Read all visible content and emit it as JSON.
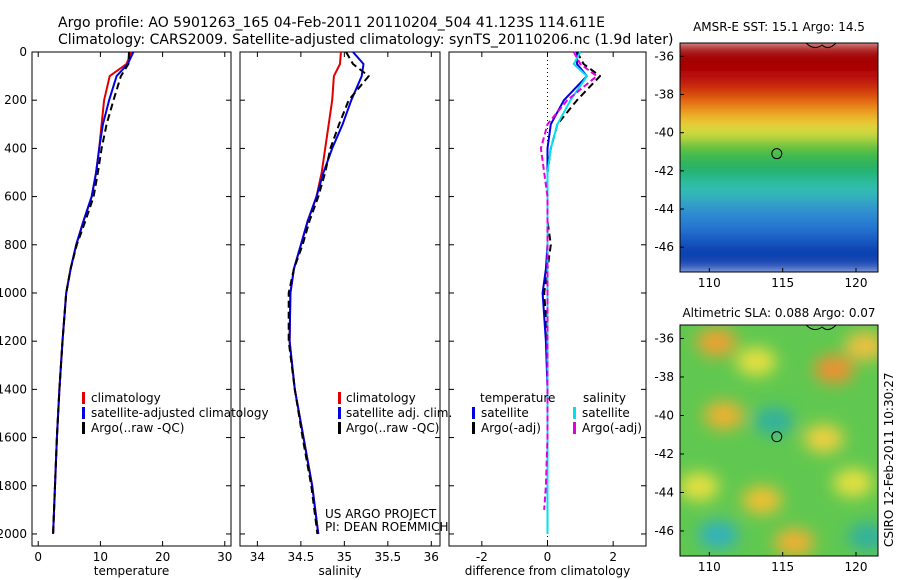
{
  "header": {
    "line1": "Argo profile: AO 5901263_165 04-Feb-2011 20110204_504 41.123S 114.611E",
    "line2": "Climatology: CARS2009. Satellite-adjusted climatology: synTS_20110206.nc (1.9d later)"
  },
  "colors": {
    "climatology": "#e00000",
    "satellite": "#0000e0",
    "argo": "#000000",
    "satellite_salinity": "#00e0f0",
    "argo_salinity_adj": "#e000e0"
  },
  "chart_data": [
    {
      "type": "line",
      "xlabel": "temperature",
      "ylabel": "",
      "xlim": [
        -1,
        31
      ],
      "ylim": [
        2050,
        0
      ],
      "xticks": [
        "0",
        "10",
        "20",
        "30"
      ],
      "yticks": [
        "0",
        "200",
        "400",
        "600",
        "800",
        "1000",
        "1200",
        "1400",
        "1600",
        "1800",
        "2000"
      ],
      "legend": [
        "climatology",
        "satellite-adjusted climatology",
        "Argo(..raw -QC)"
      ],
      "series": [
        {
          "name": "climatology",
          "color": "#e00000",
          "x": [
            15.0,
            14.2,
            11.5,
            10.6,
            10.2,
            9.8,
            9.3,
            8.6,
            7.3,
            6.1,
            5.2,
            4.5,
            3.9,
            3.4,
            3.0,
            2.7,
            2.4
          ],
          "y": [
            0,
            50,
            100,
            200,
            300,
            400,
            500,
            600,
            700,
            800,
            900,
            1000,
            1200,
            1400,
            1600,
            1800,
            2000
          ]
        },
        {
          "name": "satellite-adjusted climatology",
          "color": "#0000e0",
          "x": [
            15.3,
            14.4,
            12.6,
            11.4,
            10.4,
            9.8,
            9.3,
            8.6,
            7.3,
            6.1,
            5.2,
            4.5,
            3.9,
            3.4,
            3.0,
            2.7,
            2.4
          ],
          "y": [
            0,
            50,
            100,
            200,
            300,
            400,
            500,
            600,
            700,
            800,
            900,
            1000,
            1200,
            1400,
            1600,
            1800,
            2000
          ]
        },
        {
          "name": "Argo(..raw -QC)",
          "color": "#000000",
          "x": [
            14.6,
            14.5,
            13.3,
            12.1,
            11.0,
            10.2,
            9.6,
            8.9,
            7.6,
            6.2,
            5.2,
            4.5,
            3.9,
            3.4,
            3.0,
            2.7,
            2.4
          ],
          "y": [
            0,
            50,
            100,
            200,
            300,
            400,
            500,
            600,
            700,
            800,
            900,
            1000,
            1200,
            1400,
            1600,
            1800,
            2000
          ]
        }
      ]
    },
    {
      "type": "line",
      "xlabel": "salinity",
      "xlim": [
        33.8,
        36.1
      ],
      "ylim": [
        2050,
        0
      ],
      "xticks": [
        "34",
        "34.5",
        "35",
        "35.5",
        "36"
      ],
      "legend": [
        "climatology",
        "satellite adj. clim.",
        "Argo(..raw -QC)"
      ],
      "series": [
        {
          "name": "climatology",
          "color": "#e00000",
          "x": [
            34.96,
            34.95,
            34.88,
            34.86,
            34.82,
            34.78,
            34.74,
            34.68,
            34.58,
            34.5,
            34.42,
            34.38,
            34.37,
            34.43,
            34.53,
            34.63,
            34.7
          ],
          "y": [
            0,
            50,
            100,
            200,
            300,
            400,
            500,
            600,
            700,
            800,
            900,
            1000,
            1200,
            1400,
            1600,
            1800,
            2000
          ]
        },
        {
          "name": "satellite adj. clim.",
          "color": "#0000e0",
          "x": [
            35.1,
            35.22,
            35.2,
            35.08,
            34.98,
            34.86,
            34.76,
            34.68,
            34.58,
            34.5,
            34.42,
            34.38,
            34.37,
            34.43,
            34.53,
            34.63,
            34.7
          ],
          "y": [
            0,
            50,
            100,
            200,
            300,
            400,
            500,
            600,
            700,
            800,
            900,
            1000,
            1200,
            1400,
            1600,
            1800,
            2000
          ]
        },
        {
          "name": "Argo(..raw -QC)",
          "color": "#000000",
          "x": [
            35.02,
            35.1,
            35.28,
            35.05,
            34.94,
            34.84,
            34.78,
            34.7,
            34.6,
            34.52,
            34.42,
            34.36,
            34.36,
            34.43,
            34.52,
            34.62,
            34.69
          ],
          "y": [
            0,
            50,
            100,
            200,
            300,
            400,
            500,
            600,
            700,
            800,
            900,
            1000,
            1200,
            1400,
            1600,
            1800,
            2000
          ]
        }
      ],
      "annotations": [
        "US ARGO PROJECT",
        "PI: DEAN ROEMMICH"
      ]
    },
    {
      "type": "line",
      "xlabel": "difference from climatology",
      "xlim": [
        -3,
        3
      ],
      "ylim": [
        2050,
        0
      ],
      "xticks": [
        "-2",
        "0",
        "2"
      ],
      "legend_temperature_heading": "temperature",
      "legend_salinity_heading": "salinity",
      "legend_temperature": [
        "satellite",
        "Argo(-adj)"
      ],
      "legend_salinity": [
        "satellite",
        "Argo(-adj)"
      ],
      "series": [
        {
          "name": "temperature satellite",
          "color": "#0000e0",
          "x": [
            0.9,
            0.9,
            1.2,
            0.5,
            0.1,
            0.0,
            0.0,
            0.0,
            0.0,
            0.0,
            -0.05,
            -0.15,
            -0.05,
            0.0,
            0.0,
            0.0,
            0.0
          ],
          "y": [
            0,
            50,
            100,
            200,
            300,
            400,
            500,
            600,
            700,
            800,
            900,
            1000,
            1200,
            1400,
            1600,
            1800,
            2000
          ]
        },
        {
          "name": "temperature Argo(-adj)",
          "color": "#000000",
          "x": [
            0.9,
            1.1,
            1.6,
            0.9,
            0.3,
            0.1,
            0.0,
            0.0,
            0.0,
            0.1,
            0.0,
            -0.1,
            0.0,
            0.0,
            0.0,
            0.0,
            0.0
          ],
          "y": [
            0,
            50,
            100,
            200,
            300,
            400,
            500,
            600,
            700,
            800,
            900,
            1000,
            1200,
            1400,
            1600,
            1800,
            2000
          ]
        },
        {
          "name": "salinity satellite",
          "color": "#00e0f0",
          "x": [
            1.0,
            0.8,
            1.2,
            0.7,
            0.3,
            0.1,
            0.0,
            0.0,
            0.0,
            0.0,
            0.0,
            0.0,
            0.0,
            0.0,
            0.0,
            0.0,
            0.0
          ],
          "y": [
            0,
            50,
            100,
            200,
            300,
            400,
            500,
            600,
            700,
            800,
            900,
            1000,
            1200,
            1400,
            1600,
            1800,
            2000
          ]
        },
        {
          "name": "salinity Argo(-adj)",
          "color": "#e000e0",
          "x": [
            0.8,
            1.0,
            1.5,
            0.6,
            0.0,
            -0.2,
            -0.1,
            0.0,
            0.0,
            0.0,
            0.0,
            0.0,
            0.0,
            0.0,
            0.0,
            -0.05,
            -0.1
          ],
          "y": [
            0,
            50,
            100,
            200,
            300,
            400,
            500,
            600,
            700,
            800,
            900,
            1000,
            1200,
            1400,
            1600,
            1800,
            1900
          ]
        }
      ]
    },
    {
      "type": "heatmap",
      "title": "AMSR-E SST: 15.1 Argo: 14.5",
      "xlim": [
        108,
        121.5
      ],
      "ylim": [
        -47.3,
        -35.3
      ],
      "xticks": [
        "110",
        "115",
        "120"
      ],
      "yticks": [
        "-36",
        "-38",
        "-40",
        "-42",
        "-44",
        "-46"
      ],
      "bands": [
        {
          "lat": -35.3,
          "color": "#a00000"
        },
        {
          "lat": -36.8,
          "color": "#c01010"
        },
        {
          "lat": -37.8,
          "color": "#e05010"
        },
        {
          "lat": -38.6,
          "color": "#f0a020"
        },
        {
          "lat": -39.4,
          "color": "#e0e040"
        },
        {
          "lat": -40.3,
          "color": "#50c040"
        },
        {
          "lat": -41.3,
          "color": "#20b060"
        },
        {
          "lat": -42.4,
          "color": "#30c0b0"
        },
        {
          "lat": -43.5,
          "color": "#3090d0"
        },
        {
          "lat": -44.6,
          "color": "#2070d0"
        },
        {
          "lat": -45.6,
          "color": "#1040b0"
        },
        {
          "lat": -47.3,
          "color": "#102090"
        }
      ],
      "marker": {
        "lon": 114.6,
        "lat": -41.1
      }
    },
    {
      "type": "heatmap",
      "title": "Altimetric SLA: 0.088 Argo: 0.07",
      "xlim": [
        108,
        121.5
      ],
      "ylim": [
        -47.3,
        -35.3
      ],
      "xticks": [
        "110",
        "115",
        "120"
      ],
      "yticks": [
        "-36",
        "-38",
        "-40",
        "-42",
        "-44",
        "-46"
      ],
      "background": "#60c850",
      "blobs": [
        {
          "lon": 110.5,
          "lat": -36.2,
          "color": "#f0a030"
        },
        {
          "lon": 113.2,
          "lat": -37.2,
          "color": "#e8e040"
        },
        {
          "lon": 118.5,
          "lat": -37.6,
          "color": "#f09030"
        },
        {
          "lon": 120.6,
          "lat": -36.4,
          "color": "#f0c040"
        },
        {
          "lon": 111.0,
          "lat": -40.0,
          "color": "#f0b030"
        },
        {
          "lon": 114.4,
          "lat": -40.3,
          "color": "#30b0a0"
        },
        {
          "lon": 117.8,
          "lat": -41.2,
          "color": "#f0d040"
        },
        {
          "lon": 109.3,
          "lat": -43.7,
          "color": "#e8e040"
        },
        {
          "lon": 113.6,
          "lat": -44.4,
          "color": "#f0c030"
        },
        {
          "lon": 119.8,
          "lat": -43.5,
          "color": "#e8e040"
        },
        {
          "lon": 110.6,
          "lat": -46.2,
          "color": "#30b0c0"
        },
        {
          "lon": 115.8,
          "lat": -46.6,
          "color": "#f0b030"
        },
        {
          "lon": 120.8,
          "lat": -46.3,
          "color": "#30b0a0"
        }
      ],
      "marker": {
        "lon": 114.6,
        "lat": -41.1
      }
    }
  ],
  "footer": {
    "credit": "CSIRO 12-Feb-2011 10:30:27"
  }
}
